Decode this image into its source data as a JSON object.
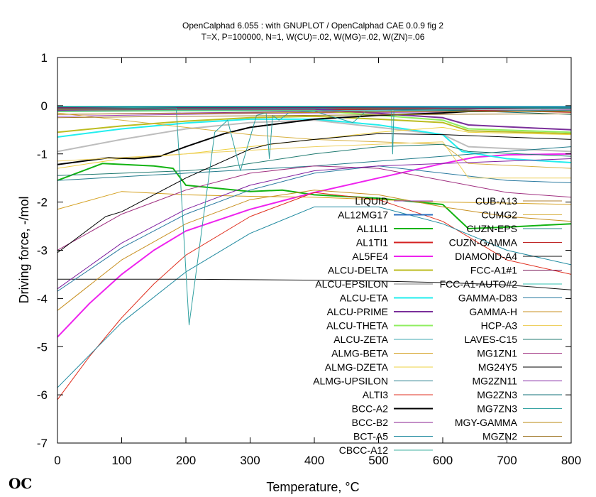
{
  "chart_data": {
    "type": "line",
    "title": "OpenCalphad   6.055 : with GNUPLOT / OpenCalphad CAE 0.0.9 fig 2",
    "subtitle": "T=X,  P=100000, N=1, W(CU)=.02, W(MG)=.02, W(ZN)=.06",
    "xlabel": "Temperature, °C",
    "ylabel": "Driving force, -/mol",
    "xlim": [
      0,
      800
    ],
    "ylim": [
      -7,
      1
    ],
    "xticks": [
      "0",
      "100",
      "200",
      "300",
      "400",
      "500",
      "600",
      "700",
      "800"
    ],
    "yticks": [
      "1",
      "0",
      "-1",
      "-2",
      "-3",
      "-4",
      "-5",
      "-6",
      "-7"
    ],
    "grid": false,
    "legend_position": "inside-bottom-right",
    "logo_text": "OC",
    "series": [
      {
        "name": "LIQUID",
        "color": "#9a3cbe",
        "width": 1,
        "x": [
          0,
          100,
          200,
          300,
          400,
          500,
          600,
          700,
          800
        ],
        "y": [
          -0.22,
          -0.2,
          -0.18,
          -0.16,
          -0.15,
          -0.14,
          -0.13,
          -0.12,
          -0.11
        ]
      },
      {
        "name": "AL12MG17",
        "color": "#2a6fbf",
        "width": 2,
        "x": [
          0,
          200,
          400,
          600,
          800
        ],
        "y": [
          -0.02,
          -0.02,
          -0.02,
          -0.02,
          -0.03
        ]
      },
      {
        "name": "AL1LI1",
        "color": "#12b312",
        "width": 2,
        "x": [
          0,
          70,
          150,
          180,
          200,
          300,
          350,
          400,
          500,
          600,
          640,
          700,
          800
        ],
        "y": [
          -1.55,
          -1.2,
          -1.25,
          -1.3,
          -1.65,
          -1.78,
          -1.75,
          -1.85,
          -1.92,
          -2.05,
          -2.55,
          -2.52,
          -2.45
        ]
      },
      {
        "name": "AL1TI1",
        "color": "#d42020",
        "width": 2,
        "x": [
          0,
          200,
          400,
          600,
          800
        ],
        "y": [
          -0.1,
          -0.09,
          -0.08,
          -0.07,
          -0.06
        ]
      },
      {
        "name": "AL5FE4",
        "color": "#ee22ee",
        "width": 2,
        "x": [
          0,
          50,
          100,
          150,
          200,
          300,
          400,
          500,
          600,
          650,
          700,
          800
        ],
        "y": [
          -4.8,
          -4.1,
          -3.5,
          -3.0,
          -2.6,
          -2.15,
          -1.8,
          -1.5,
          -1.2,
          -1.07,
          -1.02,
          -1.0
        ]
      },
      {
        "name": "ALCU-DELTA",
        "color": "#bcbc20",
        "width": 2,
        "x": [
          0,
          100,
          200,
          300,
          400,
          500,
          600,
          640,
          800
        ],
        "y": [
          -0.55,
          -0.42,
          -0.32,
          -0.25,
          -0.22,
          -0.28,
          -0.35,
          -0.52,
          -0.58
        ]
      },
      {
        "name": "ALCU-EPSILON",
        "color": "#bdbdbd",
        "width": 2,
        "x": [
          0,
          100,
          200,
          300,
          400,
          500,
          600,
          640,
          800
        ],
        "y": [
          -0.95,
          -0.7,
          -0.48,
          -0.35,
          -0.3,
          -0.45,
          -0.6,
          -0.85,
          -0.95
        ]
      },
      {
        "name": "ALCU-ETA",
        "color": "#22eeee",
        "width": 2,
        "x": [
          0,
          100,
          200,
          300,
          400,
          500,
          600,
          630,
          700,
          800
        ],
        "y": [
          -0.65,
          -0.48,
          -0.36,
          -0.28,
          -0.28,
          -0.4,
          -0.6,
          -0.95,
          -1.1,
          -1.18
        ]
      },
      {
        "name": "ALCU-PRIME",
        "color": "#7a2f9a",
        "width": 2,
        "x": [
          0,
          200,
          400,
          600,
          640,
          800
        ],
        "y": [
          -0.1,
          -0.08,
          -0.07,
          -0.25,
          -0.4,
          -0.5
        ]
      },
      {
        "name": "ALCU-THETA",
        "color": "#90ee60",
        "width": 2,
        "x": [
          0,
          200,
          400,
          600,
          640,
          800
        ],
        "y": [
          -0.12,
          -0.1,
          -0.1,
          -0.3,
          -0.48,
          -0.55
        ]
      },
      {
        "name": "ALCU-ZETA",
        "color": "#40a8b0",
        "width": 1,
        "x": [
          0,
          200,
          400,
          600,
          800
        ],
        "y": [
          -0.05,
          -0.05,
          -0.06,
          -0.06,
          -0.07
        ]
      },
      {
        "name": "ALMG-BETA",
        "color": "#d4a020",
        "width": 1,
        "x": [
          0,
          100,
          200,
          300,
          400,
          500,
          600,
          700,
          800
        ],
        "y": [
          -2.15,
          -1.78,
          -1.85,
          -1.88,
          -1.9,
          -1.95,
          -2.0,
          -2.02,
          -2.05
        ]
      },
      {
        "name": "ALMG-DZETA",
        "color": "#eed040",
        "width": 1,
        "x": [
          0,
          100,
          200,
          300,
          400,
          500,
          600,
          640,
          800
        ],
        "y": [
          -1.3,
          -1.1,
          -1.0,
          -0.85,
          -0.7,
          -0.55,
          -0.45,
          -0.55,
          -0.6
        ]
      },
      {
        "name": "ALMG-UPSILON",
        "color": "#207a8a",
        "width": 1,
        "x": [
          0,
          200,
          400,
          600,
          800
        ],
        "y": [
          -1.55,
          -1.4,
          -1.25,
          -1.05,
          -0.85
        ]
      },
      {
        "name": "ALTI3",
        "color": "#e03020",
        "width": 1,
        "x": [
          0,
          50,
          100,
          150,
          200,
          300,
          400,
          500,
          600,
          700,
          800
        ],
        "y": [
          -6.1,
          -5.2,
          -4.4,
          -3.7,
          -3.1,
          -2.3,
          -1.8,
          -1.95,
          -2.4,
          -3.2,
          -3.5
        ]
      },
      {
        "name": "BCC-A2",
        "color": "#000000",
        "width": 2,
        "x": [
          0,
          80,
          120,
          160,
          200,
          260,
          300,
          400,
          500,
          600,
          640,
          800
        ],
        "y": [
          -1.22,
          -1.08,
          -1.1,
          -1.05,
          -0.85,
          -0.58,
          -0.45,
          -0.28,
          -0.2,
          -0.15,
          -0.12,
          -0.1
        ]
      },
      {
        "name": "BCC-B2",
        "color": "#8a2090",
        "width": 1,
        "x": [
          0,
          200,
          400,
          600,
          800
        ],
        "y": [
          -0.18,
          -0.15,
          -0.12,
          -0.1,
          -0.09
        ]
      },
      {
        "name": "BCT-A5",
        "color": "#208aa0",
        "width": 1,
        "x": [
          0,
          100,
          200,
          300,
          400,
          500,
          600,
          700,
          800
        ],
        "y": [
          -5.85,
          -4.5,
          -3.45,
          -2.65,
          -2.1,
          -2.1,
          -2.45,
          -3.0,
          -3.3
        ]
      },
      {
        "name": "CBCC-A12",
        "color": "#40b0a0",
        "width": 1,
        "x": [
          0,
          100,
          200,
          300,
          400,
          500,
          600,
          700,
          800
        ],
        "y": [
          -0.12,
          -0.11,
          -0.1,
          -0.1,
          -0.1,
          -0.1,
          -0.1,
          -0.1,
          -0.1
        ]
      },
      {
        "name": "CUB-A13",
        "color": "#b08030",
        "width": 1,
        "x": [
          0,
          200,
          400,
          600,
          800
        ],
        "y": [
          -0.08,
          -0.07,
          -0.06,
          -0.05,
          -0.05
        ]
      },
      {
        "name": "CUMG2",
        "color": "#d8b040",
        "width": 1,
        "x": [
          0,
          100,
          200,
          300,
          400,
          500,
          600,
          640,
          800
        ],
        "y": [
          -0.15,
          -0.3,
          -0.45,
          -0.6,
          -0.7,
          -0.75,
          -0.8,
          -1.2,
          -1.3
        ]
      },
      {
        "name": "CUZN-EPS",
        "color": "#208888",
        "width": 1,
        "x": [
          0,
          200,
          400,
          600,
          800
        ],
        "y": [
          -0.03,
          -0.03,
          -0.03,
          -0.04,
          -0.04
        ]
      },
      {
        "name": "CUZN-GAMMA",
        "color": "#c02828",
        "width": 1,
        "x": [
          0,
          200,
          400,
          600,
          800
        ],
        "y": [
          -0.06,
          -0.06,
          -0.06,
          -0.08,
          -0.14
        ]
      },
      {
        "name": "DIAMOND-A4",
        "color": "#111111",
        "width": 1,
        "x": [
          0,
          100,
          200,
          300,
          400,
          500,
          600,
          700,
          800
        ],
        "y": [
          -3.6,
          -3.6,
          -3.6,
          -3.61,
          -3.62,
          -3.64,
          -3.67,
          -3.72,
          -3.82
        ]
      },
      {
        "name": "FCC-A1#1",
        "color": "#7a1a5a",
        "width": 1,
        "x": [
          0,
          200,
          400,
          600,
          800
        ],
        "y": [
          -0.04,
          -0.04,
          -0.04,
          -0.05,
          -0.06
        ]
      },
      {
        "name": "FCC-A1-AUTO#2",
        "color": "#30c0b0",
        "width": 1,
        "x": [
          0,
          200,
          400,
          600,
          800
        ],
        "y": [
          -0.01,
          -0.01,
          -0.01,
          -0.01,
          -0.01
        ]
      },
      {
        "name": "GAMMA-D83",
        "color": "#2a7aa0",
        "width": 1,
        "x": [
          0,
          100,
          200,
          300,
          400,
          500,
          600,
          700,
          800
        ],
        "y": [
          -3.85,
          -2.95,
          -2.25,
          -1.75,
          -1.4,
          -1.25,
          -1.4,
          -1.55,
          -1.6
        ]
      },
      {
        "name": "GAMMA-H",
        "color": "#c89020",
        "width": 1,
        "x": [
          0,
          100,
          200,
          300,
          400,
          500,
          600,
          700,
          800
        ],
        "y": [
          -4.25,
          -3.2,
          -2.45,
          -1.95,
          -1.75,
          -1.85,
          -2.1,
          -2.3,
          -2.4
        ]
      },
      {
        "name": "HCP-A3",
        "color": "#eed060",
        "width": 1,
        "x": [
          0,
          200,
          400,
          600,
          640,
          800
        ],
        "y": [
          -1.15,
          -1.0,
          -0.85,
          -0.75,
          -1.5,
          -1.5
        ]
      },
      {
        "name": "LAVES-C15",
        "color": "#207a70",
        "width": 1,
        "x": [
          0,
          200,
          250,
          300,
          400,
          500,
          600,
          640,
          800
        ],
        "y": [
          -1.45,
          -1.35,
          -1.3,
          -1.2,
          -1.0,
          -0.85,
          -0.8,
          -0.95,
          -1.05
        ]
      },
      {
        "name": "MG1ZN1",
        "color": "#a03080",
        "width": 1,
        "x": [
          0,
          100,
          200,
          300,
          400,
          500,
          600,
          700,
          800
        ],
        "y": [
          -3.0,
          -2.25,
          -1.75,
          -1.4,
          -1.25,
          -1.3,
          -1.55,
          -1.8,
          -1.9
        ]
      },
      {
        "name": "MG24Y5",
        "color": "#000000",
        "width": 1,
        "x": [
          0,
          75,
          100,
          200,
          300,
          330,
          400,
          500,
          600,
          700,
          800
        ],
        "y": [
          -3.05,
          -2.3,
          -2.2,
          -1.5,
          -0.9,
          -0.8,
          -0.7,
          -0.58,
          -0.6,
          -0.65,
          -0.7
        ]
      },
      {
        "name": "MG2ZN11",
        "color": "#8020a0",
        "width": 1,
        "x": [
          0,
          100,
          200,
          300,
          400,
          500,
          600,
          700,
          800
        ],
        "y": [
          -3.8,
          -2.85,
          -2.15,
          -1.65,
          -1.35,
          -1.25,
          -1.2,
          -1.15,
          -1.1
        ]
      },
      {
        "name": "MG2ZN3",
        "color": "#10707a",
        "width": 1,
        "x": [
          0,
          200,
          400,
          600,
          800
        ],
        "y": [
          -0.07,
          -0.06,
          -0.06,
          -0.09,
          -0.18
        ]
      },
      {
        "name": "MG7ZN3",
        "color": "#30a0a0",
        "width": 1,
        "x": [
          0,
          185,
          205,
          245,
          265,
          285,
          310,
          325,
          330,
          335,
          345,
          360,
          400,
          460,
          480,
          520,
          522,
          524,
          600,
          800
        ],
        "y": [
          -0.02,
          -0.05,
          -4.55,
          -0.55,
          -0.3,
          -1.35,
          -0.2,
          -0.15,
          -1.1,
          -0.2,
          -0.3,
          -0.15,
          -0.12,
          -0.35,
          -0.12,
          -0.1,
          -1.0,
          -0.1,
          -0.08,
          -0.05
        ]
      },
      {
        "name": "MGY-GAMMA",
        "color": "#b88a10",
        "width": 1,
        "x": [
          0,
          200,
          400,
          600,
          800
        ],
        "y": [
          -0.18,
          -0.16,
          -0.14,
          -0.12,
          -0.12
        ]
      },
      {
        "name": "MGZN2",
        "color": "#a07828",
        "width": 1,
        "x": [
          0,
          200,
          400,
          600,
          800
        ],
        "y": [
          -0.25,
          -0.22,
          -0.2,
          -0.18,
          -0.17
        ]
      }
    ]
  }
}
